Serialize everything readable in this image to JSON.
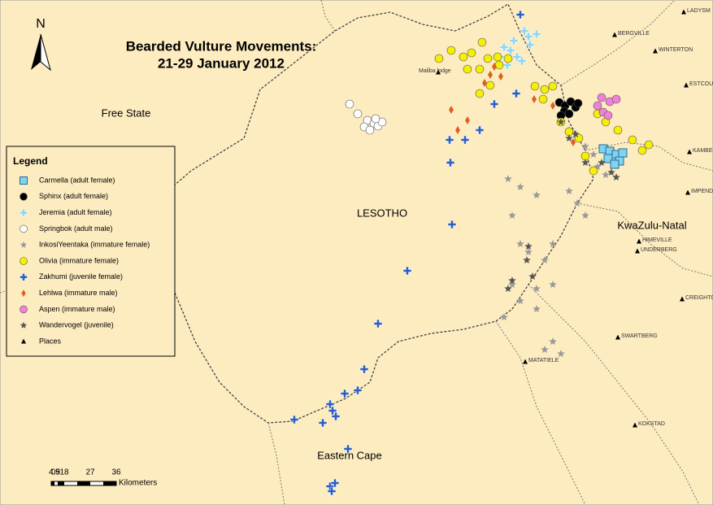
{
  "title": {
    "line1": "Bearded Vulture Movements:",
    "line2": "21-29 January 2012"
  },
  "north_label": "N",
  "regions": {
    "free_state": "Free State",
    "lesotho": "LESOTHO",
    "kwazulu_natal": "KwaZulu-Natal",
    "eastern_cape": "Eastern Cape"
  },
  "places": [
    "LADYSM",
    "BERGVILLE",
    "WINTERTON",
    "ESTCOURT",
    "KAMBERG",
    "IMPENDLE",
    "HIMEVILLE",
    "UNDERBERG",
    "CREIGHTON",
    "SWARTBERG",
    "MATATIELE",
    "KOKSTAD",
    "Maliba lodge"
  ],
  "legend": {
    "title": "Legend",
    "items": [
      "Carmella (adult female)",
      "Sphinx (adult female)",
      "Jeremia (adult female)",
      "Springbok (adult male)",
      "InkosiYeentaka (immature female)",
      "Olivia (immature female)",
      "Zakhumi (juvenile female)",
      "Lehlwa (immature male)",
      "Aspen (immature male)",
      "Wandervogel (juvenile)",
      "Places"
    ]
  },
  "scale": {
    "ticks": [
      "0",
      "4.5",
      "9",
      "18",
      "27",
      "36"
    ],
    "unit": "Kilometers"
  }
}
